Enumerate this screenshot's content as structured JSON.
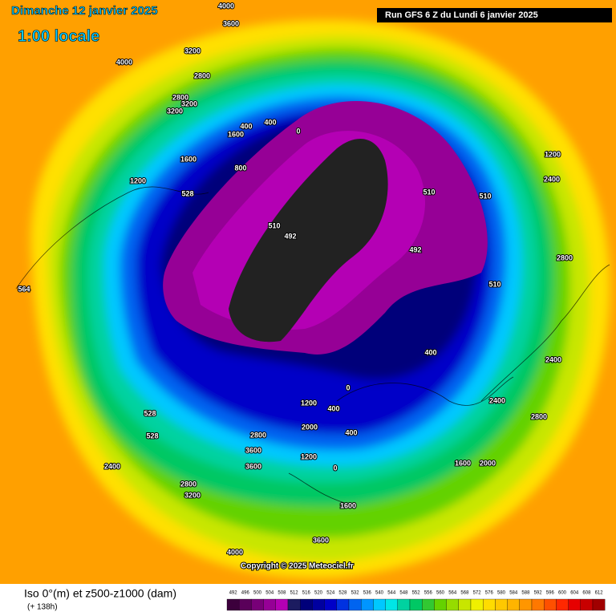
{
  "header": {
    "date": "Dimanche 12 janvier 2025",
    "time": "1:00 locale",
    "run": "Run GFS 6 Z du Lundi 6 janvier 2025"
  },
  "footer": {
    "title": "Iso 0°(m) et z500-z1000 (dam)",
    "lead": "(+ 138h)",
    "copyright": "Copyright © 2025 Meteociel.fr"
  },
  "scale": {
    "values": [
      492,
      496,
      500,
      504,
      508,
      512,
      516,
      520,
      524,
      528,
      532,
      536,
      540,
      544,
      548,
      552,
      556,
      560,
      564,
      568,
      572,
      576,
      580,
      584,
      588,
      592,
      596,
      600,
      604,
      608,
      612
    ],
    "colors": [
      "#3c003c",
      "#5a005a",
      "#780078",
      "#960096",
      "#b400b4",
      "#1c1c60",
      "#00007a",
      "#0000a0",
      "#0000c8",
      "#0032e0",
      "#0064f0",
      "#0096ff",
      "#00c8ff",
      "#00e6e6",
      "#00d2a0",
      "#00c864",
      "#32c832",
      "#64d200",
      "#96dc00",
      "#c8e600",
      "#f0f000",
      "#ffdc00",
      "#ffc800",
      "#ffb400",
      "#ff9600",
      "#ff7800",
      "#ff5000",
      "#ff2800",
      "#e60000",
      "#c80000",
      "#a00000"
    ]
  },
  "map_labels": [
    "4000",
    "3600",
    "3200",
    "4000",
    "2800",
    "2800",
    "3200",
    "3200",
    "1600",
    "400",
    "400",
    "0",
    "1600",
    "1200",
    "800",
    "528",
    "510",
    "492",
    "510",
    "510",
    "492",
    "510",
    "400",
    "1200",
    "2400",
    "2800",
    "400",
    "528",
    "2400",
    "2800",
    "3200",
    "3600",
    "2800",
    "1200",
    "1600",
    "0",
    "400",
    "2000",
    "2400",
    "2800",
    "3600",
    "4000",
    "2400",
    "528",
    "1600",
    "2000",
    "564",
    "3600",
    "1200",
    "0"
  ]
}
